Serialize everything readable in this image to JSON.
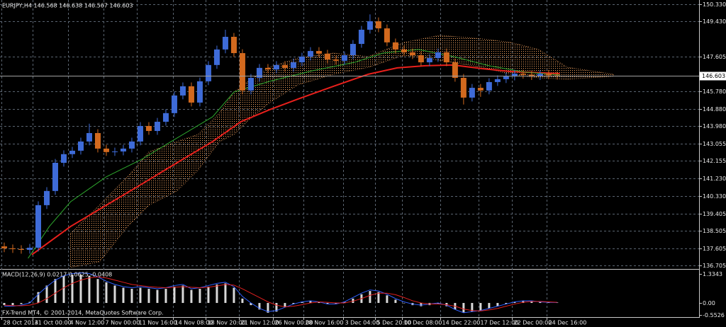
{
  "chart_data": [
    {
      "type": "candlestick",
      "title": "EURJPY,H4  146.568 146.638 146.567 146.603",
      "xlim": [
        -0.5,
        81.6
      ],
      "ylim": [
        136.56,
        150.55
      ],
      "grid": true,
      "yticks": [
        {
          "value": 150.33,
          "label": "150.330"
        },
        {
          "value": 149.43,
          "label": "149.430"
        },
        147.605,
        {
          "value": 145.78,
          "label": "145.780"
        },
        {
          "value": 144.88,
          "label": "144.880"
        },
        {
          "value": 143.98,
          "label": "143.980"
        },
        143.055,
        142.155,
        {
          "value": 141.23,
          "label": "141.230"
        },
        {
          "value": 140.33,
          "label": "140.330"
        },
        139.405,
        138.505,
        137.605,
        136.705
      ],
      "xticks": [
        {
          "value": -0.3,
          "label": "28 Oct 2014"
        },
        {
          "value": 3.3,
          "label": "31 Oct 00:00"
        },
        {
          "value": 7.5,
          "label": "4 Nov 12:00"
        },
        {
          "value": 11.7,
          "label": "7 Nov 00:00"
        },
        {
          "value": 15.6,
          "label": "11 Nov 16:00"
        },
        {
          "value": 19.8,
          "label": "14 Nov 08:00"
        },
        {
          "value": 23.7,
          "label": "18 Nov 20:00"
        },
        {
          "value": 27.6,
          "label": "21 Nov 12:00"
        },
        {
          "value": 31.6,
          "label": "26 Nov 00:00"
        },
        {
          "value": 35.2,
          "label": "28 Nov 16:00"
        },
        {
          "value": 39.8,
          "label": "3 Dec 04:00"
        },
        {
          "value": 43.6,
          "label": "5 Dec 20:00"
        },
        {
          "value": 46.8,
          "label": "10 Dec 08:00"
        },
        {
          "value": 51.3,
          "label": "14 Dec 22:00"
        },
        {
          "value": 55.8,
          "label": "17 Dec 12:00"
        },
        {
          "value": 59.7,
          "label": "22 Dec 00:00"
        },
        {
          "value": 63.8,
          "label": "24 Dec 16:00"
        }
      ],
      "up_color": "#3e6bd8",
      "down_color": "#d2691e",
      "open": [
        137.7,
        137.6,
        137.56,
        137.52,
        137.63,
        139.85,
        140.59,
        142.06,
        142.51,
        142.69,
        143.17,
        143.61,
        142.8,
        142.62,
        142.65,
        142.8,
        143.17,
        143.98,
        143.72,
        144.2,
        144.65,
        145.57,
        146.05,
        145.2,
        146.31,
        147.16,
        147.97,
        148.63,
        147.78,
        145.83,
        146.49,
        147.01,
        146.93,
        147.16,
        147.01,
        147.3,
        147.6,
        147.89,
        147.75,
        147.45,
        147.38,
        147.67,
        148.26,
        149.0,
        149.44,
        149.07,
        148.34,
        147.97,
        147.82,
        147.67,
        147.3,
        147.52,
        147.82,
        147.3,
        146.49,
        145.46,
        145.97,
        145.83,
        146.27,
        146.42,
        146.56,
        146.71,
        146.65,
        146.58,
        146.7,
        146.62
      ],
      "high": [
        137.9,
        137.8,
        137.76,
        137.83,
        140.05,
        140.79,
        142.26,
        142.71,
        142.89,
        143.37,
        144.1,
        143.81,
        143.0,
        142.85,
        143.0,
        143.37,
        144.18,
        144.18,
        144.4,
        144.85,
        145.77,
        146.25,
        146.25,
        146.51,
        147.36,
        148.17,
        149.0,
        148.83,
        147.98,
        146.69,
        147.21,
        147.21,
        147.36,
        147.36,
        147.5,
        147.8,
        148.09,
        148.09,
        147.95,
        147.65,
        147.87,
        148.46,
        149.2,
        149.8,
        149.64,
        149.27,
        148.54,
        148.17,
        148.02,
        147.87,
        147.72,
        148.02,
        148.02,
        147.5,
        146.69,
        146.17,
        146.17,
        146.47,
        146.62,
        146.76,
        146.91,
        146.91,
        146.85,
        146.9,
        146.9,
        146.82
      ],
      "low": [
        137.4,
        137.36,
        137.32,
        137.32,
        137.43,
        139.65,
        140.39,
        141.86,
        142.31,
        142.49,
        142.97,
        142.6,
        142.42,
        142.42,
        142.45,
        142.6,
        142.97,
        143.52,
        143.52,
        144.0,
        144.45,
        145.37,
        145.0,
        145.0,
        146.11,
        146.96,
        147.77,
        147.58,
        145.63,
        145.63,
        146.29,
        146.73,
        146.73,
        146.81,
        146.81,
        147.1,
        147.4,
        147.55,
        147.25,
        147.18,
        147.18,
        147.47,
        148.06,
        148.8,
        148.87,
        148.14,
        147.77,
        147.62,
        147.47,
        147.1,
        147.1,
        147.32,
        147.1,
        146.29,
        145.1,
        145.26,
        145.5,
        145.63,
        146.07,
        146.22,
        146.36,
        146.45,
        146.38,
        146.38,
        146.42,
        146.4
      ],
      "close": [
        137.6,
        137.56,
        137.52,
        137.63,
        139.85,
        140.59,
        142.06,
        142.51,
        142.69,
        143.17,
        143.61,
        142.8,
        142.62,
        142.65,
        142.8,
        143.17,
        143.98,
        143.72,
        144.2,
        144.65,
        145.57,
        146.05,
        145.2,
        146.31,
        147.16,
        147.97,
        148.63,
        147.78,
        145.83,
        146.49,
        147.01,
        146.93,
        147.16,
        147.01,
        147.3,
        147.6,
        147.89,
        147.75,
        147.45,
        147.38,
        147.67,
        148.26,
        149.0,
        149.44,
        149.07,
        148.34,
        147.97,
        147.82,
        147.67,
        147.3,
        147.52,
        147.82,
        147.3,
        146.49,
        145.46,
        145.97,
        145.83,
        146.27,
        146.42,
        146.56,
        146.71,
        146.65,
        146.58,
        146.7,
        146.62,
        146.6
      ],
      "last_price": 146.603,
      "lines": [
        {
          "color": "#e8201c",
          "x": [
            3.25,
            7.8,
            12,
            16.2,
            20.3,
            24.5,
            27.8,
            31.2,
            34.5,
            38.7,
            42.8,
            46.2,
            49.5,
            52.8,
            56.2,
            59.5,
            65.3
          ],
          "values": [
            137.27,
            138.74,
            139.85,
            140.96,
            142.06,
            143.17,
            144.2,
            144.83,
            145.38,
            146.05,
            146.68,
            147.01,
            147.12,
            147.16,
            146.97,
            146.82,
            146.71
          ]
        },
        {
          "color": "#2ea82e",
          "x": [
            2.8,
            5.3,
            7.8,
            12,
            16.2,
            20.3,
            24.5,
            27,
            31.2,
            36.2,
            41.2,
            44.5,
            48.7,
            52.8,
            57,
            61.2,
            65.3
          ],
          "values": [
            137.08,
            138.74,
            140.03,
            141.33,
            142.25,
            143.35,
            144.46,
            145.75,
            146.31,
            146.86,
            147.3,
            147.78,
            147.97,
            147.6,
            147.12,
            146.79,
            146.64
          ]
        }
      ],
      "cloud": {
        "color": "#f4a460",
        "x": [
          7.8,
          11.2,
          14.5,
          17,
          20.3,
          22.8,
          25.3,
          27,
          28.7,
          31.2,
          34.5,
          38.7,
          42.8,
          47,
          51.2,
          56.2,
          59.5,
          62.8,
          66.2,
          71.6
        ],
        "upper": [
          138.37,
          139.85,
          141.33,
          142.62,
          143.17,
          143.54,
          144.65,
          145.75,
          146.31,
          147.04,
          147.52,
          147.78,
          147.6,
          148.34,
          148.71,
          148.52,
          148.34,
          147.97,
          147.04,
          146.68
        ],
        "lower": [
          136.6,
          136.9,
          138.74,
          139.85,
          140.59,
          141.69,
          143.17,
          143.54,
          144.28,
          145.2,
          146.12,
          146.68,
          147.04,
          147.67,
          147.41,
          147.04,
          146.68,
          146.49,
          146.42,
          146.57
        ]
      }
    },
    {
      "type": "macd",
      "title": "MACD(12,26,9) 0.0217 0.0625 -0.0408",
      "annotation": "FX-Trend MT4, © 2001-2014, MetaQuotes Software Corp.",
      "ylim": [
        -0.65,
        1.53
      ],
      "yticks": [
        1.3343,
        {
          "value": 0,
          "label": "0.00"
        },
        -0.5526
      ],
      "histogram": {
        "color": "#d8d8d8",
        "values": [
          -0.1,
          -0.1,
          -0.05,
          0.05,
          0.5,
          0.8,
          1.1,
          1.25,
          1.3,
          1.3,
          1.25,
          1.1,
          0.95,
          0.8,
          0.7,
          0.65,
          0.7,
          0.65,
          0.6,
          0.65,
          0.75,
          0.8,
          0.6,
          0.65,
          0.75,
          0.85,
          0.9,
          0.7,
          0.2,
          -0.1,
          -0.3,
          -0.45,
          -0.4,
          -0.2,
          -0.05,
          0.05,
          0.1,
          0.05,
          -0.05,
          -0.05,
          0.05,
          0.2,
          0.4,
          0.55,
          0.5,
          0.35,
          0.15,
          0.0,
          -0.1,
          -0.15,
          -0.1,
          -0.05,
          -0.15,
          -0.3,
          -0.45,
          -0.4,
          -0.35,
          -0.25,
          -0.15,
          -0.05,
          0.05,
          0.1,
          0.1,
          0.05,
          0.03,
          0.02
        ]
      },
      "lines": [
        {
          "color": "#3060ff",
          "values": [
            -0.15,
            -0.15,
            -0.1,
            0.0,
            0.4,
            0.75,
            1.05,
            1.25,
            1.35,
            1.38,
            1.35,
            1.2,
            1.0,
            0.85,
            0.75,
            0.7,
            0.75,
            0.7,
            0.65,
            0.7,
            0.8,
            0.85,
            0.65,
            0.7,
            0.8,
            0.9,
            0.95,
            0.75,
            0.3,
            0.0,
            -0.25,
            -0.4,
            -0.35,
            -0.2,
            -0.05,
            0.05,
            0.1,
            0.05,
            -0.05,
            -0.05,
            0.05,
            0.25,
            0.45,
            0.6,
            0.55,
            0.4,
            0.2,
            0.05,
            -0.05,
            -0.1,
            -0.05,
            0.0,
            -0.1,
            -0.3,
            -0.45,
            -0.4,
            -0.35,
            -0.25,
            -0.15,
            -0.05,
            0.05,
            0.1,
            0.1,
            0.05,
            0.03,
            0.02
          ]
        },
        {
          "color": "#e02020",
          "values": [
            -0.1,
            -0.12,
            -0.13,
            -0.1,
            0.0,
            0.2,
            0.45,
            0.7,
            0.9,
            1.05,
            1.15,
            1.2,
            1.15,
            1.05,
            0.95,
            0.85,
            0.8,
            0.75,
            0.72,
            0.7,
            0.72,
            0.75,
            0.72,
            0.7,
            0.72,
            0.78,
            0.85,
            0.82,
            0.65,
            0.45,
            0.25,
            0.05,
            -0.1,
            -0.18,
            -0.15,
            -0.08,
            0.0,
            0.05,
            0.03,
            0.0,
            0.0,
            0.08,
            0.2,
            0.35,
            0.45,
            0.45,
            0.38,
            0.25,
            0.1,
            0.0,
            -0.05,
            -0.05,
            -0.08,
            -0.15,
            -0.28,
            -0.35,
            -0.37,
            -0.32,
            -0.25,
            -0.15,
            -0.05,
            0.03,
            0.07,
            0.07,
            0.05,
            0.03
          ]
        }
      ]
    }
  ]
}
